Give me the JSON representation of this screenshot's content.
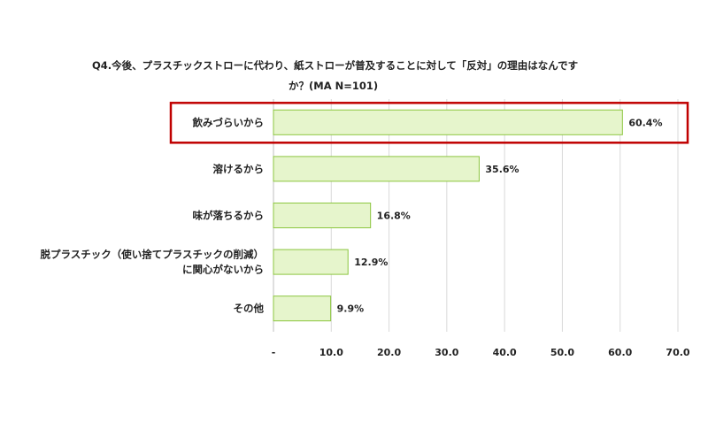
{
  "chart_data": {
    "type": "bar",
    "orientation": "horizontal",
    "title_line1": "Q4.今後、プラスチックストローに代わり、紙ストローが普及することに対して「反対」の理由はなんです",
    "title_line2": "か？(MA N=101)",
    "categories": [
      [
        "飲みづらいから"
      ],
      [
        "溶けるから"
      ],
      [
        "味が落ちるから"
      ],
      [
        "脱プラスチック（使い捨てプラスチックの削減）",
        "に関心がないから"
      ],
      [
        "その他"
      ]
    ],
    "values": [
      60.4,
      35.6,
      16.8,
      12.9,
      9.9
    ],
    "value_labels": [
      "60.4%",
      "35.6%",
      "16.8%",
      "12.9%",
      "9.9%"
    ],
    "xlim": [
      0,
      70
    ],
    "x_ticks": [
      "-",
      "10.0",
      "20.0",
      "30.0",
      "40.0",
      "50.0",
      "60.0",
      "70.0"
    ],
    "grid": "vertical",
    "highlight_index": 0,
    "colors": {
      "bar_fill": "#e6f5cc",
      "bar_stroke": "#8cc63f",
      "grid": "#d9d9d9",
      "axis": "#bfbfbf",
      "highlight": "#c00000",
      "text": "#222222"
    }
  }
}
